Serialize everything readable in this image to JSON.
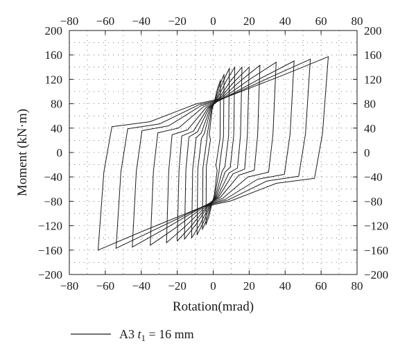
{
  "chart_data": {
    "type": "line",
    "xlabel": "Rotation(mrad)",
    "ylabel": "Moment (kN·m)",
    "xlim": [
      -80,
      80
    ],
    "ylim": [
      -200,
      200
    ],
    "xticks": [
      -80,
      -60,
      -40,
      -20,
      0,
      20,
      40,
      60,
      80
    ],
    "xtick_labels": [
      "−80",
      "−60",
      "−40",
      "−20",
      "0",
      "20",
      "40",
      "60",
      "80"
    ],
    "yticks": [
      200,
      160,
      120,
      80,
      40,
      0,
      -40,
      -80,
      -120,
      -160,
      -200
    ],
    "ytick_labels": [
      "200",
      "160",
      "120",
      "80",
      "40",
      "0",
      "−40",
      "−80",
      "−120",
      "−160",
      "−200"
    ],
    "grid": "dotted",
    "legend_position": "bottom-left",
    "series": [
      {
        "name": "A3 t1 = 16 mm",
        "legend_label": {
          "prefix": "A3 ",
          "var": "t",
          "sub": "1",
          "suffix": " = 16 mm"
        },
        "loops": [
          {
            "u": 4,
            "Mpos": 118,
            "Mneg": -118
          },
          {
            "u": 6,
            "Mpos": 128,
            "Mneg": -126
          },
          {
            "u": 9,
            "Mpos": 138,
            "Mneg": -135
          },
          {
            "u": 12,
            "Mpos": 140,
            "Mneg": -140
          },
          {
            "u": 16,
            "Mpos": 140,
            "Mneg": -142
          },
          {
            "u": 20,
            "Mpos": 140,
            "Mneg": -145
          },
          {
            "u": 26,
            "Mpos": 143,
            "Mneg": -148
          },
          {
            "u": 35,
            "Mpos": 148,
            "Mneg": -152
          },
          {
            "u": 45,
            "Mpos": 150,
            "Mneg": -155
          },
          {
            "u": 54,
            "Mpos": 153,
            "Mneg": -157
          },
          {
            "u": 64,
            "Mpos": 157,
            "Mneg": -160
          }
        ]
      }
    ]
  }
}
